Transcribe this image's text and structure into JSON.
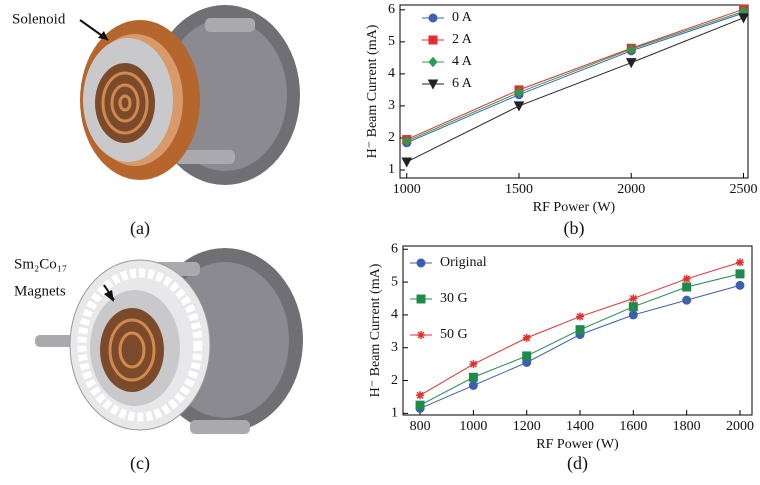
{
  "panels": {
    "a": {
      "callout": "Solenoid",
      "label": "(a)"
    },
    "c": {
      "callout": "Sm₂Co₁₇",
      "callout2": "Magnets",
      "label": "(c)"
    }
  },
  "chart_data": [
    {
      "type": "line",
      "panel_label": "(b)",
      "x_label": "RF Power (W)",
      "y_label": "H⁻ Beam Current (mA)",
      "x": [
        1000,
        1500,
        2000,
        2500
      ],
      "xlim": [
        970,
        2520
      ],
      "xticks": [
        1000,
        1500,
        2000,
        2500
      ],
      "ylim": [
        0.75,
        6.15
      ],
      "yticks": [
        1,
        2,
        3,
        4,
        5,
        6
      ],
      "legend": "upper left",
      "grid": false,
      "series": [
        {
          "name": "0 A",
          "color": "#3d5fb0",
          "marker": "circle",
          "values": [
            1.85,
            3.35,
            4.72,
            5.9
          ]
        },
        {
          "name": "2 A",
          "color": "#e0302e",
          "marker": "square",
          "values": [
            1.95,
            3.5,
            4.8,
            6.02
          ]
        },
        {
          "name": "4 A",
          "color": "#2e9a4e",
          "marker": "diamond",
          "values": [
            1.9,
            3.42,
            4.77,
            5.95
          ]
        },
        {
          "name": "6 A",
          "color": "#222222",
          "marker": "triangle-down",
          "values": [
            1.25,
            3.0,
            4.35,
            5.75
          ]
        }
      ]
    },
    {
      "type": "line",
      "panel_label": "(d)",
      "x_label": "RF Power (W)",
      "y_label": "H⁻ Beam Current (mA)",
      "x": [
        800,
        1000,
        1200,
        1400,
        1600,
        1800,
        2000
      ],
      "xlim": [
        736,
        2045
      ],
      "xticks": [
        800,
        1000,
        1200,
        1400,
        1600,
        1800,
        2000
      ],
      "ylim": [
        0.95,
        6.1
      ],
      "yticks": [
        1,
        2,
        3,
        4,
        5,
        6
      ],
      "legend": "upper left",
      "grid": false,
      "series": [
        {
          "name": "Original",
          "color": "#3d5fb0",
          "marker": "circle",
          "values": [
            1.15,
            1.85,
            2.55,
            3.4,
            4.0,
            4.45,
            4.9
          ]
        },
        {
          "name": "30 G",
          "color": "#1f8a4a",
          "marker": "square",
          "values": [
            1.25,
            2.1,
            2.75,
            3.55,
            4.25,
            4.85,
            5.25
          ]
        },
        {
          "name": "50 G",
          "color": "#e0302e",
          "marker": "plus",
          "values": [
            1.55,
            2.5,
            3.3,
            3.95,
            4.5,
            5.1,
            5.6
          ]
        }
      ]
    }
  ]
}
